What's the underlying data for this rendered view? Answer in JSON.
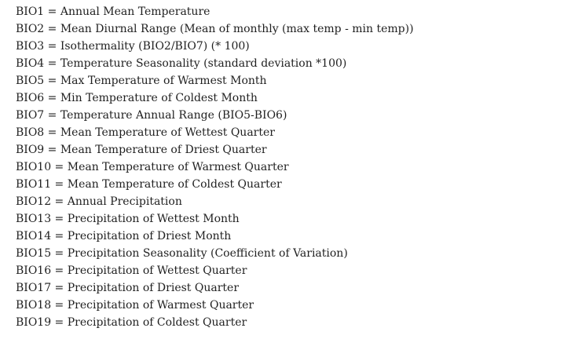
{
  "definitions": [
    "BIO1 = Annual Mean Temperature",
    "BIO2 = Mean Diurnal Range (Mean of monthly (max temp - min temp))",
    "BIO3 = Isothermality (BIO2/BIO7) (* 100)",
    "BIO4 = Temperature Seasonality (standard deviation *100)",
    "BIO5 = Max Temperature of Warmest Month",
    "BIO6 = Min Temperature of Coldest Month",
    "BIO7 = Temperature Annual Range (BIO5-BIO6)",
    "BIO8 = Mean Temperature of Wettest Quarter",
    "BIO9 = Mean Temperature of Driest Quarter",
    "BIO10 = Mean Temperature of Warmest Quarter",
    "BIO11 = Mean Temperature of Coldest Quarter",
    "BIO12 = Annual Precipitation",
    "BIO13 = Precipitation of Wettest Month",
    "BIO14 = Precipitation of Driest Month",
    "BIO15 = Precipitation Seasonality (Coefficient of Variation)",
    "BIO16 = Precipitation of Wettest Quarter",
    "BIO17 = Precipitation of Driest Quarter",
    "BIO18 = Precipitation of Warmest Quarter",
    "BIO19 = Precipitation of Coldest Quarter"
  ],
  "colors": {
    "text": "#1f1f1f",
    "background": "#ffffff"
  }
}
